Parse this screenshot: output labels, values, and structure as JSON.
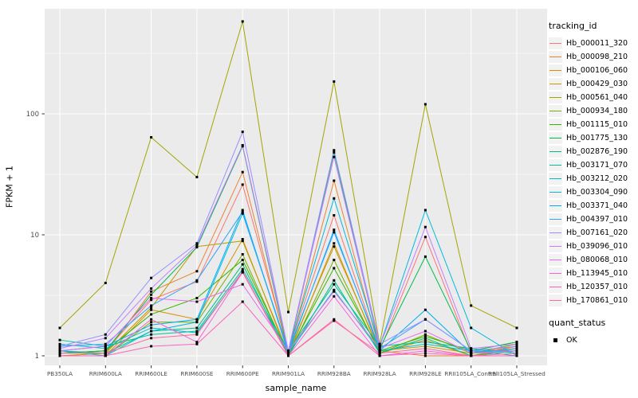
{
  "figure": {
    "ylabel": "FPKM + 1",
    "xlabel": "sample_name"
  },
  "y_axis": {
    "tick_labels": [
      "1",
      "10",
      "100"
    ],
    "tick_values": [
      1,
      10,
      100
    ],
    "minor_tick_values": [
      3.1623,
      31.623,
      316.23
    ]
  },
  "legend": {
    "title": "tracking_id",
    "quant_title": "quant_status",
    "quant_items": [
      {
        "label": "OK"
      }
    ]
  },
  "colors": {
    "panel_bg": "#EBEBEB",
    "gridline": "#FFFFFF",
    "tick_text": "#4D4D4D",
    "tick_mark": "#333333",
    "marker": "#000000"
  },
  "chart_data": {
    "type": "line",
    "yscale": "log",
    "ylim": [
      1,
      700
    ],
    "grid": true,
    "legend_position": "right",
    "marker": {
      "shape": "square",
      "color": "#000000",
      "size": 3
    },
    "title": "",
    "xlabel": "sample_name",
    "ylabel": "FPKM + 1",
    "categories": [
      "PB350LA",
      "RRIM600LA",
      "RRIM600LE",
      "RRIM600SE",
      "RRIM600PE",
      "RRIM901LA",
      "RRIM928BA",
      "RRIM928LA",
      "RRIM928LE",
      "RRII105LA_Control",
      "RRII105LA_Stressed"
    ],
    "series": [
      {
        "name": "Hb_000011_320",
        "color": "#F8766D",
        "values": [
          1.05,
          1.1,
          2.9,
          4.1,
          26,
          1.1,
          14.5,
          1.1,
          9.6,
          1.05,
          1.2
        ]
      },
      {
        "name": "Hb_000098_210",
        "color": "#EB8335",
        "values": [
          1.0,
          1.05,
          3.4,
          5.0,
          33,
          1.05,
          28,
          1.1,
          1.0,
          1.0,
          1.2
        ]
      },
      {
        "name": "Hb_000106_060",
        "color": "#D89000",
        "values": [
          1.0,
          1.0,
          2.4,
          2.0,
          9.2,
          1.0,
          8.5,
          1.05,
          1.35,
          1.0,
          1.15
        ]
      },
      {
        "name": "Hb_000429_030",
        "color": "#C09B00",
        "values": [
          1.0,
          1.05,
          2.5,
          8.0,
          8.9,
          1.05,
          8.0,
          1.1,
          1.2,
          1.05,
          1.1
        ]
      },
      {
        "name": "Hb_000561_040",
        "color": "#A3A500",
        "values": [
          1.7,
          4.0,
          64,
          30,
          580,
          2.3,
          185,
          1.25,
          120,
          2.6,
          1.7
        ]
      },
      {
        "name": "Hb_000934_180",
        "color": "#7CAE00",
        "values": [
          1.0,
          1.0,
          1.9,
          1.9,
          6.9,
          1.0,
          6.2,
          1.05,
          1.5,
          1.05,
          1.25
        ]
      },
      {
        "name": "Hb_001115_010",
        "color": "#39B600",
        "values": [
          1.05,
          1.1,
          2.2,
          3.0,
          6.2,
          1.05,
          5.3,
          1.1,
          1.45,
          1.1,
          1.3
        ]
      },
      {
        "name": "Hb_001775_130",
        "color": "#00BB4E",
        "values": [
          1.05,
          1.1,
          3.2,
          7.9,
          54,
          1.05,
          48,
          1.15,
          6.6,
          1.1,
          1.3
        ]
      },
      {
        "name": "Hb_002876_190",
        "color": "#00BF7D",
        "values": [
          1.1,
          1.05,
          1.6,
          1.7,
          5.7,
          1.0,
          4.2,
          1.05,
          1.4,
          1.0,
          1.1
        ]
      },
      {
        "name": "Hb_003171_070",
        "color": "#00C1A3",
        "values": [
          1.35,
          1.2,
          1.5,
          1.6,
          5.2,
          1.1,
          3.9,
          1.2,
          1.3,
          1.15,
          1.05
        ]
      },
      {
        "name": "Hb_003212_020",
        "color": "#00BFC4",
        "values": [
          1.25,
          1.15,
          1.7,
          1.55,
          4.9,
          1.05,
          3.5,
          1.1,
          1.25,
          1.1,
          1.0
        ]
      },
      {
        "name": "Hb_003304_090",
        "color": "#00BAE0",
        "values": [
          1.1,
          1.0,
          1.6,
          1.9,
          15,
          1.1,
          20,
          1.2,
          16,
          1.7,
          1.0
        ]
      },
      {
        "name": "Hb_003371_040",
        "color": "#00B0F6",
        "values": [
          1.1,
          1.2,
          1.8,
          2.0,
          16,
          1.05,
          11,
          1.1,
          2.4,
          1.05,
          1.15
        ]
      },
      {
        "name": "Hb_004397_010",
        "color": "#35A2FF",
        "values": [
          1.2,
          1.25,
          2.6,
          4.2,
          15.5,
          1.1,
          10.5,
          1.15,
          2.0,
          1.1,
          1.1
        ]
      },
      {
        "name": "Hb_007161_020",
        "color": "#9590FF",
        "values": [
          1.2,
          1.5,
          4.4,
          8.5,
          71,
          1.1,
          50,
          1.25,
          2.0,
          1.1,
          1.2
        ]
      },
      {
        "name": "Hb_039096_010",
        "color": "#C77CFF",
        "values": [
          1.15,
          1.4,
          3.6,
          8.2,
          55,
          1.1,
          44,
          1.2,
          11.6,
          1.15,
          1.25
        ]
      },
      {
        "name": "Hb_080068_010",
        "color": "#E76BF3",
        "values": [
          1.1,
          1.2,
          3.0,
          2.8,
          3.9,
          1.1,
          3.4,
          1.15,
          1.6,
          1.05,
          1.1
        ]
      },
      {
        "name": "Hb_113945_010",
        "color": "#FA62DB",
        "values": [
          1.0,
          1.0,
          2.0,
          1.3,
          4.9,
          1.0,
          3.1,
          1.0,
          1.1,
          1.0,
          1.0
        ]
      },
      {
        "name": "Hb_120357_010",
        "color": "#FF62BC",
        "values": [
          1.0,
          1.0,
          1.2,
          1.25,
          2.8,
          1.0,
          2.0,
          1.0,
          1.05,
          1.0,
          1.0
        ]
      },
      {
        "name": "Hb_170861_010",
        "color": "#FF6A98",
        "values": [
          1.05,
          1.05,
          1.4,
          1.5,
          5.0,
          1.0,
          1.95,
          1.05,
          1.15,
          1.0,
          1.05
        ]
      }
    ]
  }
}
